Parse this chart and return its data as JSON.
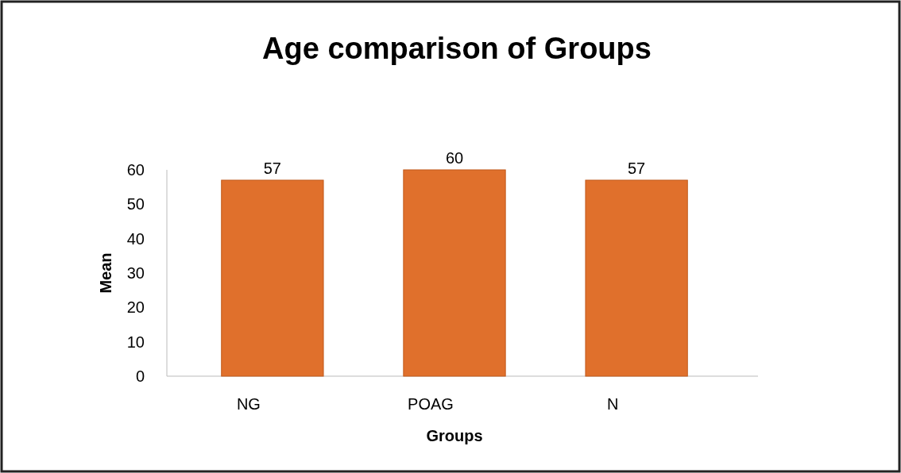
{
  "chart_data": {
    "type": "bar",
    "title": "Age comparison of Groups",
    "xlabel": "Groups",
    "ylabel": "Mean",
    "categories": [
      "NG",
      "POAG",
      "N"
    ],
    "values": [
      57,
      60,
      57
    ],
    "color": "#e0702c",
    "ylim": [
      0,
      60
    ],
    "yticks": [
      0,
      10,
      20,
      30,
      40,
      50,
      60
    ],
    "data_labels": true
  }
}
